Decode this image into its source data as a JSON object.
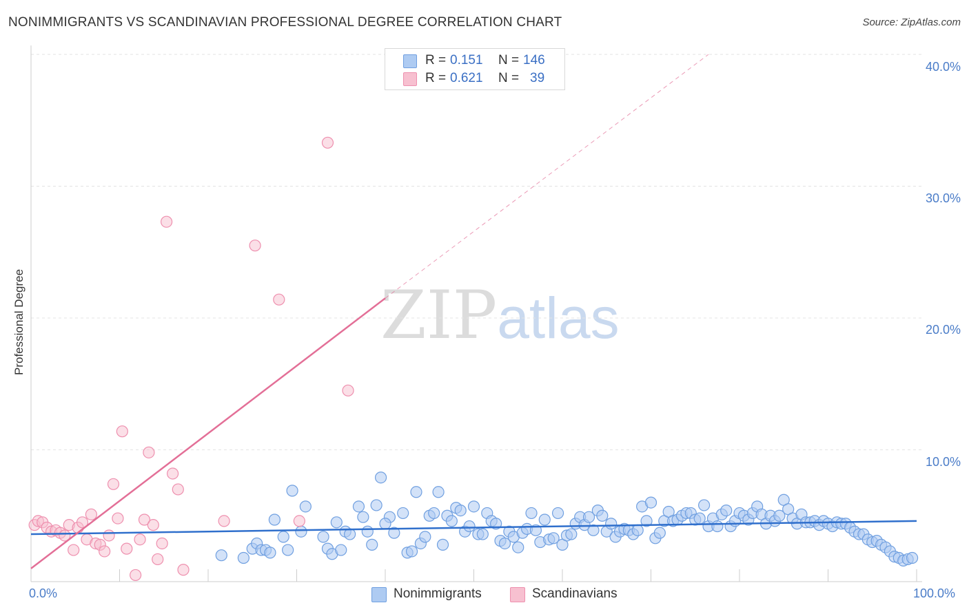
{
  "title": "NONIMMIGRANTS VS SCANDINAVIAN PROFESSIONAL DEGREE CORRELATION CHART",
  "source": "Source: ZipAtlas.com",
  "watermark": {
    "zip": "ZIP",
    "atlas": "atlas"
  },
  "stats": {
    "blue": {
      "r_label": "R =",
      "r_value": "0.151",
      "n_label": "N =",
      "n_value": "146"
    },
    "pink": {
      "r_label": "R =",
      "r_value": "0.621",
      "n_label": "N =",
      "n_value": "39"
    }
  },
  "colors": {
    "blue_fill": "#aecbf2",
    "blue_stroke": "#6f9fe0",
    "blue_line": "#2f6fcc",
    "pink_fill": "#f7c0d0",
    "pink_stroke": "#ee8fae",
    "pink_line": "#e36f97",
    "grid": "#e3e3e3",
    "tick_text": "#4a7cc8"
  },
  "chart_data": {
    "type": "scatter",
    "title": "NONIMMIGRANTS VS SCANDINAVIAN PROFESSIONAL DEGREE CORRELATION CHART",
    "xlabel": "",
    "ylabel": "Professional Degree",
    "xlim": [
      0,
      100
    ],
    "ylim": [
      0,
      42
    ],
    "x_tick_labels": [
      "0.0%",
      "100.0%"
    ],
    "y_ticks": [
      10,
      20,
      30,
      40
    ],
    "y_tick_labels": [
      "10.0%",
      "20.0%",
      "30.0%",
      "40.0%"
    ],
    "grid": true,
    "legend": [
      "Nonimmigrants",
      "Scandinavians"
    ],
    "series": [
      {
        "name": "Nonimmigrants",
        "trend": {
          "x": [
            0,
            100
          ],
          "y": [
            3.6,
            4.6
          ]
        },
        "points": [
          [
            21.5,
            2.0
          ],
          [
            24.0,
            1.8
          ],
          [
            25.0,
            2.5
          ],
          [
            25.5,
            2.9
          ],
          [
            26.0,
            2.4
          ],
          [
            26.5,
            2.4
          ],
          [
            27.0,
            2.2
          ],
          [
            27.5,
            4.7
          ],
          [
            28.5,
            3.4
          ],
          [
            29.0,
            2.4
          ],
          [
            29.5,
            6.9
          ],
          [
            30.5,
            3.8
          ],
          [
            31.0,
            5.7
          ],
          [
            33.0,
            3.4
          ],
          [
            33.5,
            2.5
          ],
          [
            34.0,
            2.1
          ],
          [
            34.5,
            4.5
          ],
          [
            35.0,
            2.4
          ],
          [
            35.5,
            3.8
          ],
          [
            36.0,
            3.6
          ],
          [
            37.0,
            5.7
          ],
          [
            37.5,
            4.9
          ],
          [
            38.0,
            3.8
          ],
          [
            38.5,
            2.8
          ],
          [
            39.0,
            5.8
          ],
          [
            39.5,
            7.9
          ],
          [
            40.5,
            4.9
          ],
          [
            40.0,
            4.4
          ],
          [
            41.0,
            3.7
          ],
          [
            42.0,
            5.2
          ],
          [
            42.5,
            2.2
          ],
          [
            43.0,
            2.3
          ],
          [
            43.5,
            6.8
          ],
          [
            44.0,
            2.9
          ],
          [
            44.5,
            3.4
          ],
          [
            45.0,
            5.0
          ],
          [
            45.5,
            5.2
          ],
          [
            46.0,
            6.8
          ],
          [
            46.5,
            2.8
          ],
          [
            47.0,
            5.0
          ],
          [
            47.5,
            4.6
          ],
          [
            48.0,
            5.6
          ],
          [
            48.5,
            5.4
          ],
          [
            49.0,
            3.8
          ],
          [
            49.5,
            4.2
          ],
          [
            50.0,
            5.7
          ],
          [
            50.5,
            3.6
          ],
          [
            51.0,
            3.6
          ],
          [
            51.5,
            5.2
          ],
          [
            52.0,
            4.6
          ],
          [
            52.5,
            4.4
          ],
          [
            53.0,
            3.1
          ],
          [
            53.5,
            2.9
          ],
          [
            54.0,
            3.8
          ],
          [
            54.5,
            3.4
          ],
          [
            55.0,
            2.6
          ],
          [
            55.5,
            3.7
          ],
          [
            56.0,
            4.0
          ],
          [
            56.5,
            5.2
          ],
          [
            57.0,
            3.9
          ],
          [
            57.5,
            3.0
          ],
          [
            58.0,
            4.7
          ],
          [
            58.5,
            3.2
          ],
          [
            59.0,
            3.3
          ],
          [
            59.5,
            5.2
          ],
          [
            60.0,
            2.8
          ],
          [
            60.5,
            3.5
          ],
          [
            61.0,
            3.6
          ],
          [
            61.5,
            4.4
          ],
          [
            62.0,
            4.9
          ],
          [
            62.5,
            4.3
          ],
          [
            63.0,
            4.9
          ],
          [
            63.5,
            3.9
          ],
          [
            64.0,
            5.4
          ],
          [
            64.5,
            5.0
          ],
          [
            65.0,
            3.8
          ],
          [
            65.5,
            4.4
          ],
          [
            66.0,
            3.4
          ],
          [
            66.5,
            3.8
          ],
          [
            67.0,
            4.0
          ],
          [
            67.5,
            3.9
          ],
          [
            68.0,
            3.6
          ],
          [
            68.5,
            3.9
          ],
          [
            69.0,
            5.7
          ],
          [
            69.5,
            4.6
          ],
          [
            70.0,
            6.0
          ],
          [
            70.5,
            3.3
          ],
          [
            71.0,
            3.7
          ],
          [
            71.5,
            4.6
          ],
          [
            72.0,
            5.3
          ],
          [
            72.5,
            4.6
          ],
          [
            73.0,
            4.7
          ],
          [
            73.5,
            5.0
          ],
          [
            74.0,
            5.2
          ],
          [
            74.5,
            5.2
          ],
          [
            75.0,
            4.7
          ],
          [
            75.5,
            4.8
          ],
          [
            76.0,
            5.8
          ],
          [
            76.5,
            4.2
          ],
          [
            77.0,
            4.8
          ],
          [
            77.5,
            4.2
          ],
          [
            78.0,
            5.1
          ],
          [
            78.5,
            5.4
          ],
          [
            79.0,
            4.2
          ],
          [
            79.5,
            4.6
          ],
          [
            80.0,
            5.2
          ],
          [
            80.5,
            5.0
          ],
          [
            81.0,
            4.7
          ],
          [
            81.5,
            5.2
          ],
          [
            82.0,
            5.7
          ],
          [
            82.5,
            5.1
          ],
          [
            83.0,
            4.4
          ],
          [
            83.5,
            5.0
          ],
          [
            84.0,
            4.6
          ],
          [
            84.5,
            5.0
          ],
          [
            85.0,
            6.2
          ],
          [
            85.5,
            5.5
          ],
          [
            86.0,
            4.8
          ],
          [
            86.5,
            4.4
          ],
          [
            87.0,
            5.1
          ],
          [
            87.5,
            4.5
          ],
          [
            88.0,
            4.5
          ],
          [
            88.5,
            4.6
          ],
          [
            89.0,
            4.3
          ],
          [
            89.5,
            4.6
          ],
          [
            90.0,
            4.4
          ],
          [
            90.5,
            4.2
          ],
          [
            91.0,
            4.5
          ],
          [
            91.5,
            4.4
          ],
          [
            92.0,
            4.4
          ],
          [
            92.5,
            4.1
          ],
          [
            93.0,
            3.8
          ],
          [
            93.5,
            3.6
          ],
          [
            94.0,
            3.6
          ],
          [
            94.5,
            3.2
          ],
          [
            95.0,
            3.0
          ],
          [
            95.5,
            3.1
          ],
          [
            96.0,
            2.8
          ],
          [
            96.5,
            2.6
          ],
          [
            97.0,
            2.3
          ],
          [
            97.5,
            1.9
          ],
          [
            98.0,
            1.8
          ],
          [
            98.5,
            1.6
          ],
          [
            99.0,
            1.7
          ],
          [
            99.5,
            1.8
          ]
        ]
      },
      {
        "name": "Scandinavians",
        "trend": {
          "x": [
            0,
            40
          ],
          "y": [
            1.0,
            21.5
          ],
          "dashed_extension": {
            "x": [
              40,
              76.5
            ],
            "y": [
              21.5,
              40.0
            ]
          }
        },
        "points": [
          [
            0.4,
            4.3
          ],
          [
            0.8,
            4.6
          ],
          [
            1.3,
            4.5
          ],
          [
            1.8,
            4.1
          ],
          [
            2.3,
            3.8
          ],
          [
            2.8,
            3.9
          ],
          [
            3.3,
            3.7
          ],
          [
            3.8,
            3.5
          ],
          [
            4.3,
            4.3
          ],
          [
            4.8,
            2.4
          ],
          [
            5.3,
            4.1
          ],
          [
            5.8,
            4.5
          ],
          [
            6.3,
            3.2
          ],
          [
            6.8,
            5.1
          ],
          [
            7.3,
            2.9
          ],
          [
            7.8,
            2.8
          ],
          [
            8.3,
            2.3
          ],
          [
            8.8,
            3.5
          ],
          [
            9.3,
            7.4
          ],
          [
            9.8,
            4.8
          ],
          [
            10.3,
            11.4
          ],
          [
            10.8,
            2.5
          ],
          [
            11.8,
            0.5
          ],
          [
            12.3,
            3.2
          ],
          [
            12.8,
            4.7
          ],
          [
            13.3,
            9.8
          ],
          [
            13.8,
            4.3
          ],
          [
            14.3,
            1.7
          ],
          [
            14.8,
            2.9
          ],
          [
            15.3,
            27.3
          ],
          [
            16.0,
            8.2
          ],
          [
            16.6,
            7.0
          ],
          [
            17.2,
            0.9
          ],
          [
            21.8,
            4.6
          ],
          [
            25.3,
            25.5
          ],
          [
            28.0,
            21.4
          ],
          [
            30.3,
            4.6
          ],
          [
            33.5,
            33.3
          ],
          [
            35.8,
            14.5
          ]
        ]
      }
    ]
  }
}
